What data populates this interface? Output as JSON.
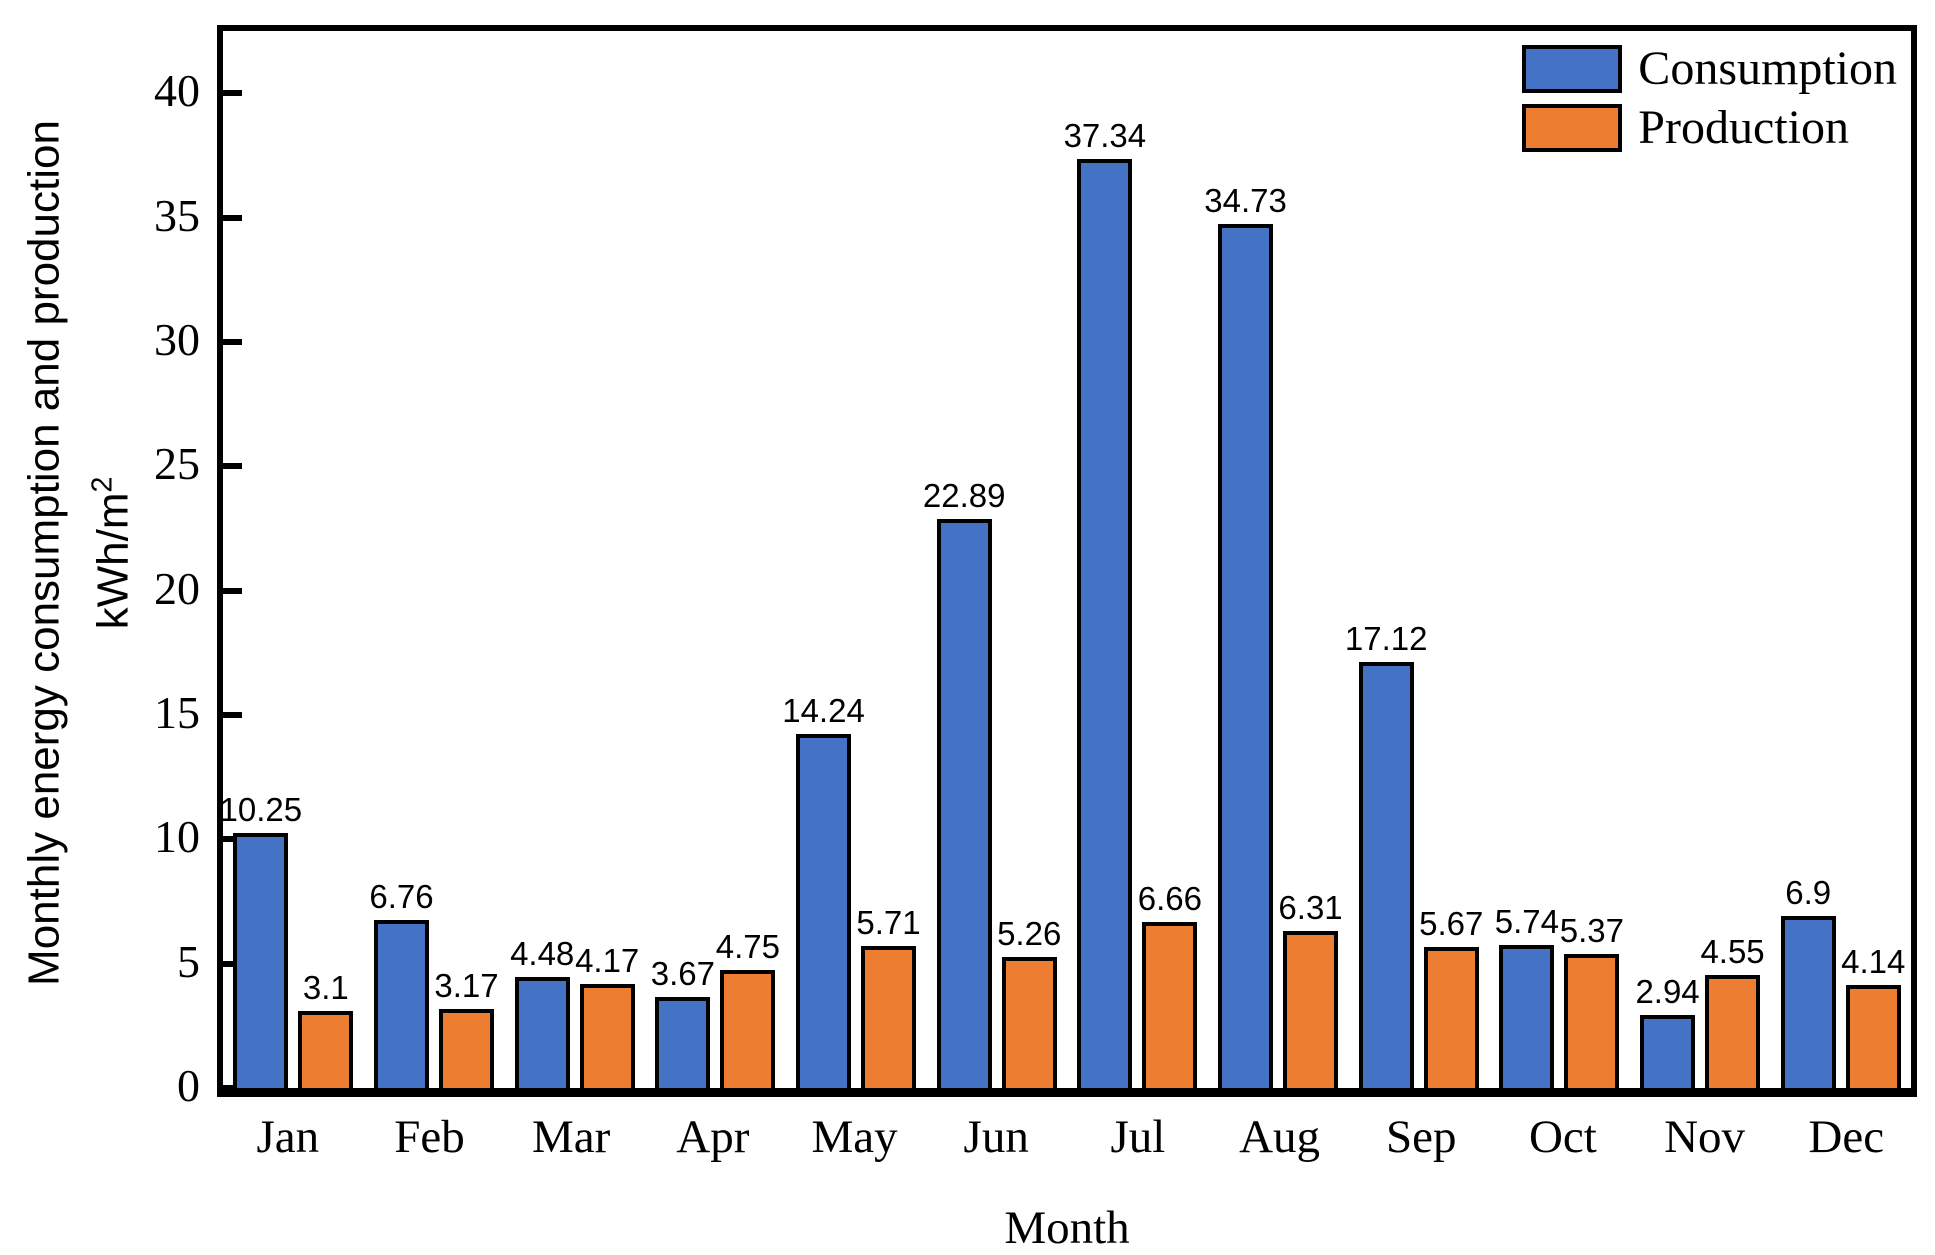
{
  "chart_data": {
    "type": "bar",
    "title": "",
    "xlabel": "Month",
    "ylabel": "Monthly energy consumption and production",
    "ylabel_unit_base": "kWh/m",
    "ylabel_unit_sup": "2",
    "categories": [
      "Jan",
      "Feb",
      "Mar",
      "Apr",
      "May",
      "Jun",
      "Jul",
      "Aug",
      "Sep",
      "Oct",
      "Nov",
      "Dec"
    ],
    "series": [
      {
        "name": "Consumption",
        "color": "#4472C4",
        "values": [
          10.25,
          6.76,
          4.48,
          3.67,
          14.24,
          22.89,
          37.34,
          34.73,
          17.12,
          5.74,
          2.94,
          6.9
        ]
      },
      {
        "name": "Production",
        "color": "#ED7D31",
        "values": [
          3.1,
          3.17,
          4.17,
          4.75,
          5.71,
          5.26,
          6.66,
          6.31,
          5.67,
          5.37,
          4.55,
          4.14
        ]
      }
    ],
    "y_ticks": [
      0,
      5,
      10,
      15,
      20,
      25,
      30,
      35,
      40
    ],
    "ylim": [
      0,
      42.5
    ],
    "grid": false,
    "legend_position": "top-right",
    "bar_outline_color": "#000000",
    "axis_color": "#000000",
    "value_labels_shown": true
  }
}
